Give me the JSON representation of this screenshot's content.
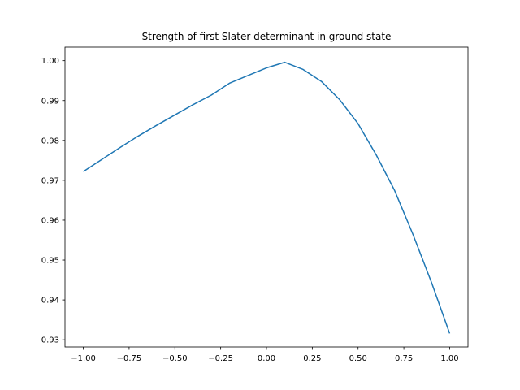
{
  "colors": {
    "line": "#1f77b4",
    "axes": "#000000",
    "background": "#ffffff"
  },
  "chart_data": {
    "type": "line",
    "title": "Strength of first Slater determinant in ground state",
    "xlabel": "",
    "ylabel": "",
    "xlim": [
      -1.1,
      1.1
    ],
    "ylim": [
      0.9282,
      1.0034
    ],
    "grid": false,
    "x_ticks": [
      "−1.00",
      "−0.75",
      "−0.50",
      "−0.25",
      "0.00",
      "0.25",
      "0.50",
      "0.75",
      "1.00"
    ],
    "y_ticks": [
      "0.93",
      "0.94",
      "0.95",
      "0.96",
      "0.97",
      "0.98",
      "0.99",
      "1.00"
    ],
    "series": [
      {
        "x": [
          -1.0,
          -0.9,
          -0.8,
          -0.7,
          -0.6,
          -0.5,
          -0.4,
          -0.3,
          -0.2,
          -0.1,
          0.0,
          0.1,
          0.2,
          0.3,
          0.4,
          0.5,
          0.6,
          0.7,
          0.8,
          0.9,
          1.0
        ],
        "values": [
          0.9722,
          0.9752,
          0.9782,
          0.9811,
          0.9838,
          0.9864,
          0.989,
          0.9914,
          0.9944,
          0.9963,
          0.9982,
          0.9996,
          0.9978,
          0.9948,
          0.9902,
          0.9842,
          0.9763,
          0.9674,
          0.9564,
          0.9445,
          0.9316
        ]
      }
    ]
  }
}
